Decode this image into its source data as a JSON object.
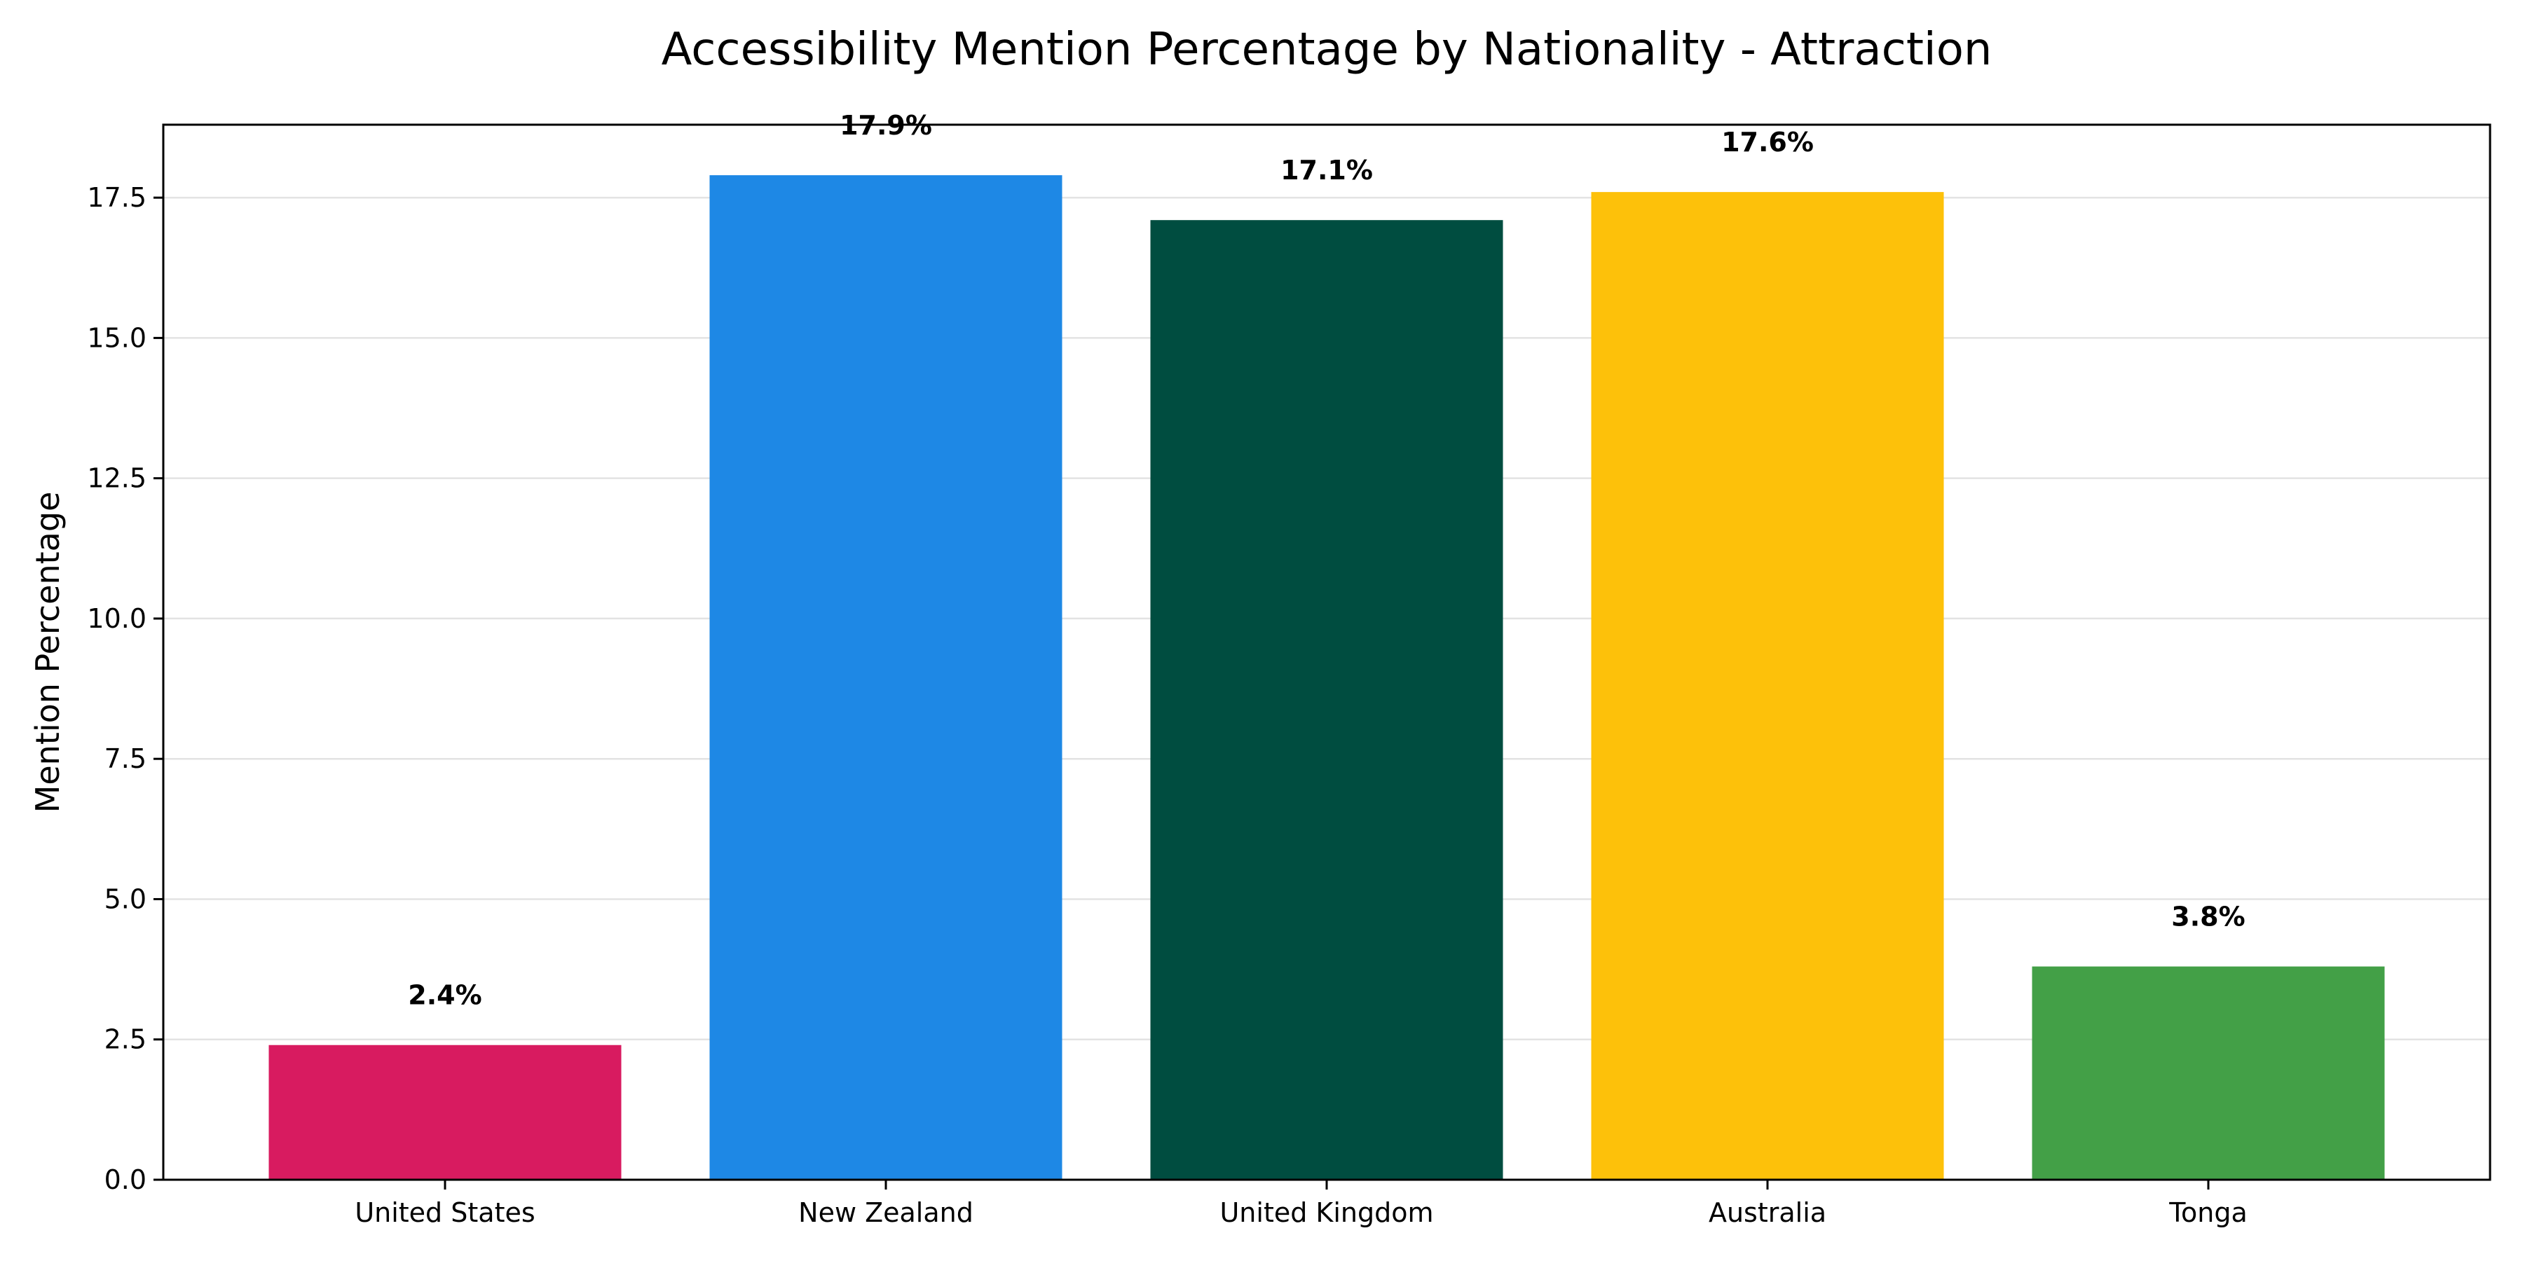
{
  "chart_data": {
    "type": "bar",
    "title": "Accessibility Mention Percentage by Nationality - Attraction",
    "xlabel": "",
    "ylabel": "Mention Percentage",
    "categories": [
      "United States",
      "New Zealand",
      "United Kingdom",
      "Australia",
      "Tonga"
    ],
    "values": [
      2.4,
      17.9,
      17.1,
      17.6,
      3.8
    ],
    "value_labels": [
      "2.4%",
      "17.9%",
      "17.1%",
      "17.6%",
      "3.8%"
    ],
    "colors": [
      "#d81b60",
      "#1e88e5",
      "#004d40",
      "#fdc10a",
      "#43a047"
    ],
    "ylim": [
      0,
      18.8
    ],
    "yticks": [
      0.0,
      2.5,
      5.0,
      7.5,
      10.0,
      12.5,
      15.0,
      17.5
    ],
    "ytick_labels": [
      "0.0",
      "2.5",
      "5.0",
      "7.5",
      "10.0",
      "12.5",
      "15.0",
      "17.5"
    ],
    "grid": "horizontal",
    "legend": "none"
  }
}
